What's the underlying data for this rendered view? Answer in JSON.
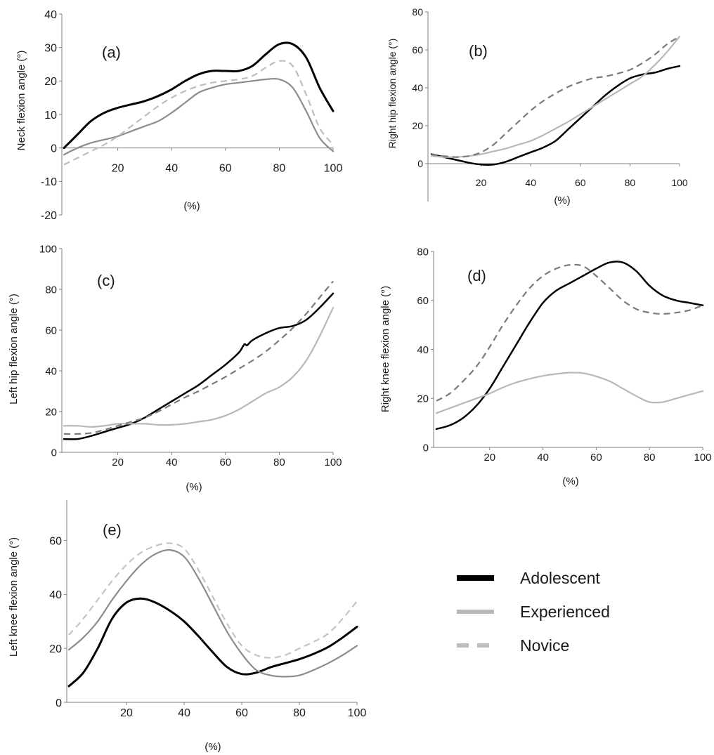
{
  "legend": [
    {
      "name": "Adolescent",
      "color": "#000000",
      "dash": "solid"
    },
    {
      "name": "Experienced",
      "color": "#b8b8b8",
      "dash": "solid"
    },
    {
      "name": "Novice",
      "color": "#bdbdbd",
      "dash": "dashed"
    }
  ],
  "chart_data": [
    {
      "type": "line",
      "panel": "(a)",
      "xlabel": "(%)",
      "ylabel": "Neck flexion angle (°)",
      "xlim": [
        0,
        100
      ],
      "ylim": [
        -20,
        40
      ],
      "xticks": [
        20,
        40,
        60,
        80,
        100
      ],
      "yticks": [
        -20,
        -10,
        0,
        10,
        20,
        30,
        40
      ],
      "series": [
        {
          "name": "Adolescent",
          "color": "#000000",
          "width": 3,
          "dash": "solid",
          "x": [
            0,
            5,
            10,
            15,
            20,
            25,
            30,
            35,
            40,
            45,
            50,
            55,
            60,
            65,
            70,
            75,
            80,
            85,
            90,
            95,
            100
          ],
          "y": [
            0,
            4,
            8,
            10.5,
            12,
            13,
            14,
            15.5,
            17.5,
            20,
            22,
            23,
            23,
            23,
            24.5,
            28,
            31,
            31,
            27,
            18,
            11
          ]
        },
        {
          "name": "Experienced",
          "color": "#8c8c8c",
          "width": 2.2,
          "dash": "solid",
          "x": [
            0,
            5,
            10,
            15,
            20,
            25,
            30,
            35,
            40,
            45,
            50,
            55,
            60,
            65,
            70,
            75,
            80,
            85,
            90,
            95,
            100
          ],
          "y": [
            -2,
            0,
            1.5,
            2.5,
            3.5,
            5,
            6.5,
            8,
            10.5,
            13.5,
            16.5,
            18,
            19,
            19.5,
            20,
            20.5,
            20.5,
            18,
            11,
            3,
            -1
          ]
        },
        {
          "name": "Novice",
          "color": "#bdbdbd",
          "width": 2.2,
          "dash": "dashed",
          "x": [
            0,
            5,
            10,
            15,
            20,
            25,
            30,
            35,
            40,
            45,
            50,
            55,
            60,
            65,
            70,
            75,
            80,
            85,
            90,
            95,
            100
          ],
          "y": [
            -5,
            -3,
            -1,
            1,
            3.5,
            6.5,
            9.5,
            12.5,
            15,
            17,
            18.5,
            19.5,
            20,
            20.5,
            21.5,
            24,
            26,
            24.5,
            16,
            6,
            1
          ]
        }
      ]
    },
    {
      "type": "line",
      "panel": "(b)",
      "xlabel": "(%)",
      "ylabel": "Right hip flexion angle (°)",
      "xlim": [
        0,
        100
      ],
      "ylim": [
        -20,
        80
      ],
      "xticks": [
        20,
        40,
        60,
        80,
        100
      ],
      "yticks": [
        0,
        20,
        40,
        60,
        80
      ],
      "series": [
        {
          "name": "Adolescent",
          "color": "#000000",
          "width": 2.5,
          "dash": "solid",
          "x": [
            0,
            5,
            10,
            15,
            20,
            25,
            30,
            35,
            40,
            45,
            50,
            55,
            60,
            65,
            70,
            75,
            80,
            85,
            90,
            95,
            100
          ],
          "y": [
            5,
            3.5,
            2,
            0.5,
            -0.5,
            -0.5,
            1,
            3.5,
            6,
            8.5,
            12,
            18,
            24,
            30,
            36,
            41,
            45,
            47,
            48,
            50,
            51.5
          ]
        },
        {
          "name": "Experienced",
          "color": "#b8b8b8",
          "width": 2.2,
          "dash": "solid",
          "x": [
            0,
            5,
            10,
            15,
            20,
            25,
            30,
            35,
            40,
            45,
            50,
            55,
            60,
            65,
            70,
            75,
            80,
            85,
            90,
            95,
            100
          ],
          "y": [
            4,
            3.5,
            3.5,
            4,
            5,
            6.5,
            8,
            10,
            12,
            15,
            18.5,
            22,
            26,
            30,
            34,
            38,
            42,
            46,
            52,
            59,
            67
          ]
        },
        {
          "name": "Novice",
          "color": "#7a7a7a",
          "width": 2.2,
          "dash": "dashed",
          "x": [
            0,
            5,
            10,
            15,
            20,
            25,
            30,
            35,
            40,
            45,
            50,
            55,
            60,
            65,
            70,
            75,
            80,
            85,
            90,
            95,
            100
          ],
          "y": [
            5,
            4,
            3.5,
            4,
            6,
            10,
            16,
            22,
            28,
            33,
            37,
            40.5,
            43,
            45,
            46,
            47.5,
            49.5,
            53,
            57.5,
            63,
            67
          ]
        }
      ]
    },
    {
      "type": "line",
      "panel": "(c)",
      "xlabel": "(%)",
      "ylabel": "Left hip flexion angle (°)",
      "xlim": [
        0,
        100
      ],
      "ylim": [
        0,
        100
      ],
      "xticks": [
        20,
        40,
        60,
        80,
        100
      ],
      "yticks": [
        0,
        20,
        40,
        60,
        80,
        100
      ],
      "series": [
        {
          "name": "Adolescent",
          "color": "#000000",
          "width": 2.5,
          "dash": "solid",
          "x": [
            0,
            5,
            10,
            15,
            20,
            25,
            30,
            35,
            40,
            45,
            50,
            55,
            60,
            65,
            67,
            68,
            70,
            75,
            80,
            85,
            90,
            95,
            100
          ],
          "y": [
            6.5,
            6.5,
            8,
            10,
            12,
            14,
            17,
            21,
            25,
            29,
            33,
            38,
            43,
            49,
            53,
            52.5,
            55,
            58.5,
            61,
            62,
            65,
            71,
            78
          ]
        },
        {
          "name": "Experienced",
          "color": "#b8b8b8",
          "width": 2.2,
          "dash": "solid",
          "x": [
            0,
            5,
            10,
            15,
            20,
            25,
            30,
            35,
            40,
            45,
            50,
            55,
            60,
            65,
            70,
            75,
            80,
            85,
            90,
            95,
            100
          ],
          "y": [
            13,
            13,
            12.5,
            13,
            14,
            14,
            14,
            13.5,
            13.5,
            14,
            15,
            16,
            18,
            21,
            25,
            29,
            32,
            37,
            45,
            57,
            71
          ]
        },
        {
          "name": "Novice",
          "color": "#7a7a7a",
          "width": 2.2,
          "dash": "dashed",
          "x": [
            0,
            5,
            10,
            15,
            20,
            25,
            30,
            35,
            40,
            45,
            50,
            55,
            60,
            65,
            70,
            75,
            80,
            85,
            90,
            95,
            100
          ],
          "y": [
            9,
            9,
            9.5,
            11,
            13,
            15,
            17,
            20,
            23.5,
            27,
            30,
            33.5,
            37,
            41,
            45,
            49.5,
            55,
            61,
            68,
            76,
            84
          ]
        }
      ]
    },
    {
      "type": "line",
      "panel": "(d)",
      "xlabel": "(%)",
      "ylabel": "Right knee flexion angle (°)",
      "xlim": [
        0,
        100
      ],
      "ylim": [
        0,
        80
      ],
      "xticks": [
        20,
        40,
        60,
        80,
        100
      ],
      "yticks": [
        0,
        20,
        40,
        60,
        80
      ],
      "series": [
        {
          "name": "Adolescent",
          "color": "#000000",
          "width": 2.5,
          "dash": "solid",
          "x": [
            0,
            5,
            10,
            15,
            20,
            25,
            30,
            35,
            40,
            45,
            50,
            55,
            60,
            65,
            70,
            75,
            80,
            85,
            90,
            95,
            100
          ],
          "y": [
            7.5,
            9,
            12,
            17,
            24,
            33,
            42,
            51,
            59,
            64,
            67,
            70,
            73,
            75.5,
            75.5,
            72,
            66,
            62,
            60,
            59,
            58
          ]
        },
        {
          "name": "Experienced",
          "color": "#b8b8b8",
          "width": 2.2,
          "dash": "solid",
          "x": [
            0,
            5,
            10,
            15,
            20,
            25,
            30,
            35,
            40,
            45,
            50,
            55,
            60,
            65,
            70,
            75,
            80,
            85,
            90,
            95,
            100
          ],
          "y": [
            14,
            16,
            18,
            20,
            22,
            24.5,
            26.5,
            28,
            29.2,
            30,
            30.5,
            30.3,
            29,
            27,
            24,
            21,
            18.5,
            18.5,
            20,
            21.5,
            23
          ]
        },
        {
          "name": "Novice",
          "color": "#7a7a7a",
          "width": 2.2,
          "dash": "dashed",
          "x": [
            0,
            5,
            10,
            15,
            20,
            25,
            30,
            35,
            40,
            45,
            50,
            55,
            60,
            65,
            70,
            75,
            80,
            85,
            90,
            95,
            100
          ],
          "y": [
            19,
            22,
            27,
            33,
            41,
            50,
            58,
            65,
            70,
            73,
            74.5,
            74,
            70,
            65,
            60,
            56.5,
            55,
            54.5,
            55,
            56,
            58
          ]
        }
      ]
    },
    {
      "type": "line",
      "panel": "(e)",
      "xlabel": "(%)",
      "ylabel": "Left knee flexion angle (°)",
      "xlim": [
        0,
        100
      ],
      "ylim": [
        0,
        75
      ],
      "xticks": [
        20,
        40,
        60,
        80,
        100
      ],
      "yticks": [
        0,
        20,
        40,
        60
      ],
      "series": [
        {
          "name": "Adolescent",
          "color": "#000000",
          "width": 3,
          "dash": "solid",
          "x": [
            0,
            5,
            10,
            15,
            20,
            25,
            30,
            35,
            40,
            45,
            50,
            55,
            60,
            65,
            70,
            75,
            80,
            85,
            90,
            95,
            100
          ],
          "y": [
            6,
            11,
            20,
            31,
            37,
            38.5,
            37,
            34,
            30,
            24.5,
            18.5,
            13,
            10.5,
            11,
            13,
            14.5,
            16,
            18,
            20.5,
            24,
            28
          ]
        },
        {
          "name": "Experienced",
          "color": "#8c8c8c",
          "width": 2.2,
          "dash": "solid",
          "x": [
            0,
            5,
            10,
            15,
            20,
            25,
            30,
            35,
            40,
            45,
            50,
            55,
            60,
            65,
            70,
            75,
            80,
            85,
            90,
            95,
            100
          ],
          "y": [
            19.5,
            24,
            30,
            38,
            45,
            51,
            55,
            56.5,
            54,
            46,
            36,
            26,
            18,
            12,
            10,
            9.5,
            10,
            12,
            14.5,
            17.5,
            21
          ]
        },
        {
          "name": "Novice",
          "color": "#c4c4c4",
          "width": 2.2,
          "dash": "dashed",
          "x": [
            0,
            5,
            10,
            15,
            20,
            25,
            30,
            35,
            40,
            45,
            50,
            55,
            60,
            65,
            70,
            75,
            80,
            85,
            90,
            95,
            100
          ],
          "y": [
            25,
            31,
            38,
            45,
            51,
            55.5,
            58,
            59,
            57,
            49,
            39,
            29,
            21,
            17.5,
            16.5,
            17.5,
            20,
            22.5,
            25.5,
            31,
            37.5
          ]
        }
      ]
    }
  ]
}
